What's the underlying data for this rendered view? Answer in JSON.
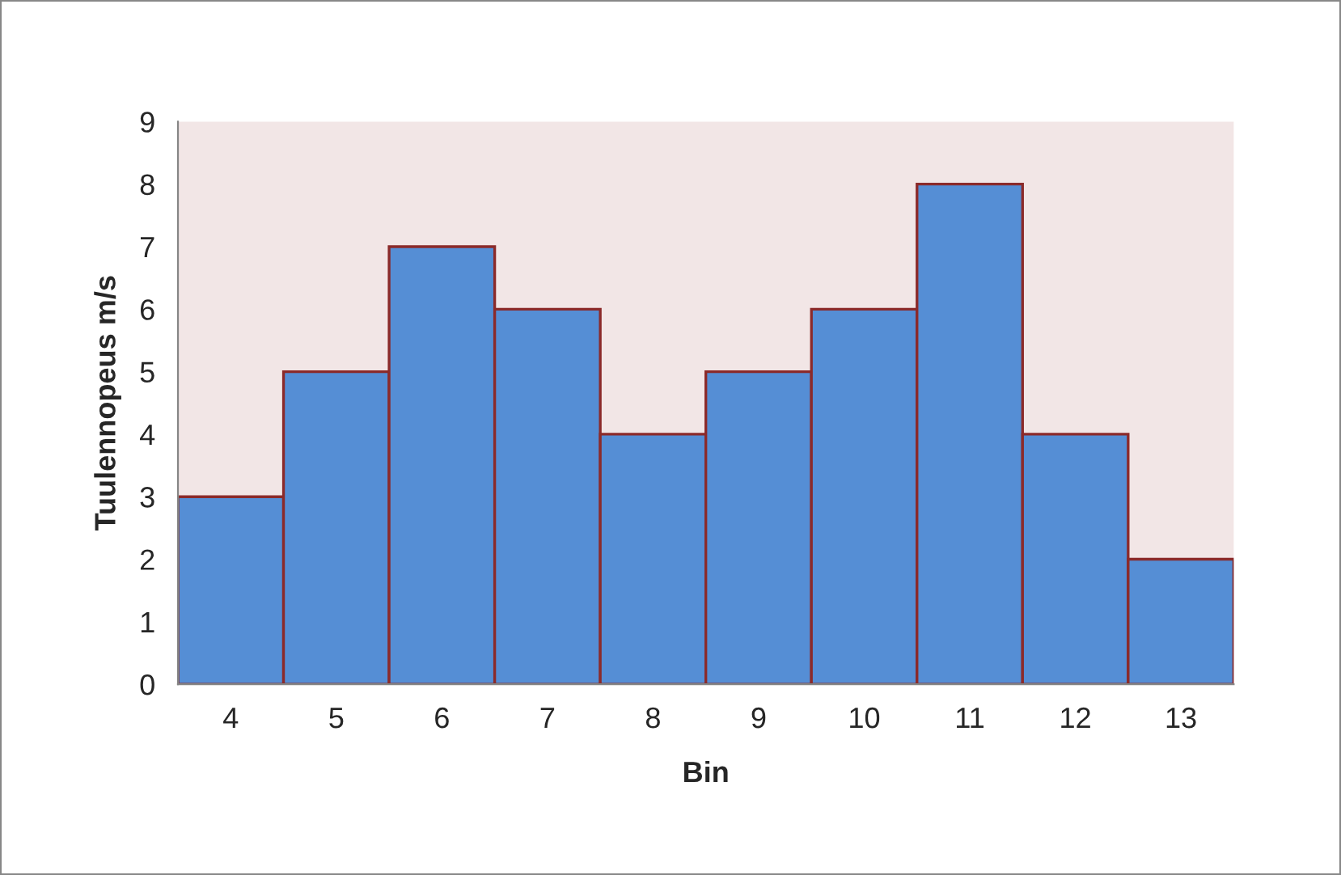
{
  "chart_data": {
    "type": "bar",
    "xlabel": "Bin",
    "ylabel": "Tuulennopeus m/s",
    "categories": [
      "4",
      "5",
      "6",
      "7",
      "8",
      "9",
      "10",
      "11",
      "12",
      "13"
    ],
    "values": [
      3,
      5,
      7,
      6,
      4,
      5,
      6,
      8,
      4,
      2
    ],
    "color": "#558ed5",
    "ylim": [
      0,
      9
    ],
    "yticks": [
      0,
      1,
      2,
      3,
      4,
      5,
      6,
      7,
      8,
      9
    ],
    "grid": false,
    "legend": false
  }
}
